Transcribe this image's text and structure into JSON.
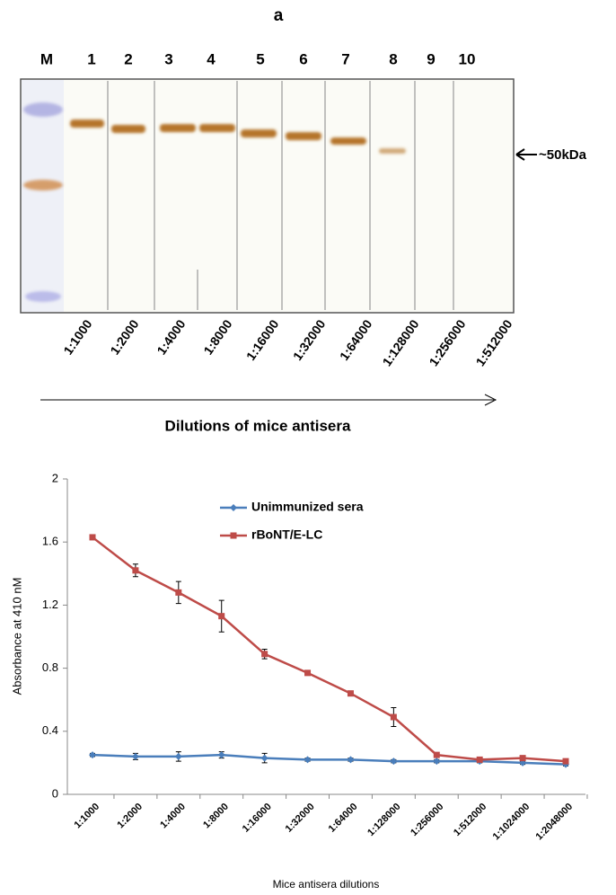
{
  "figure_a": {
    "label": "a",
    "lanes": [
      "M",
      "1",
      "2",
      "3",
      "4",
      "5",
      "6",
      "7",
      "8",
      "9",
      "10"
    ],
    "marker": "~50kDa",
    "dilutions": [
      "1:1000",
      "1:2000",
      "1:4000",
      "1:8000",
      "1:16000",
      "1:32000",
      "1:64000",
      "1:128000",
      "1:256000",
      "1:512000"
    ],
    "axis_label": "Dilutions of mice antisera"
  },
  "chart_data": {
    "type": "line",
    "y_label": "Absorbance at 410 nM",
    "x_label": "Mice antisera dilutions",
    "categories": [
      "1:1000",
      "1:2000",
      "1:4000",
      "1:8000",
      "1:16000",
      "1:32000",
      "1:64000",
      "1:128000",
      "1:256000",
      "1:512000",
      "1:1024000",
      "1:2048000"
    ],
    "series": [
      {
        "name": "Unimmunized sera",
        "color": "#4a7ebb",
        "marker": "diamond",
        "values": [
          0.25,
          0.24,
          0.24,
          0.25,
          0.23,
          0.22,
          0.22,
          0.21,
          0.21,
          0.21,
          0.2,
          0.19
        ],
        "errors": [
          0.01,
          0.02,
          0.03,
          0.02,
          0.03,
          0.01,
          0.01,
          0.01,
          0.01,
          0.01,
          0.01,
          0.01
        ]
      },
      {
        "name": "rBoNT/E-LC",
        "color": "#be4b48",
        "marker": "square",
        "values": [
          1.63,
          1.42,
          1.28,
          1.13,
          0.89,
          0.77,
          0.64,
          0.49,
          0.25,
          0.22,
          0.23,
          0.21
        ],
        "errors": [
          0.01,
          0.04,
          0.07,
          0.1,
          0.03,
          0.01,
          0.01,
          0.06,
          0.01,
          0.01,
          0.01,
          0.01
        ]
      }
    ],
    "ylim": [
      0,
      2
    ],
    "yticks": [
      0,
      0.4,
      0.8,
      1.2,
      1.6,
      2
    ],
    "grid": false
  }
}
